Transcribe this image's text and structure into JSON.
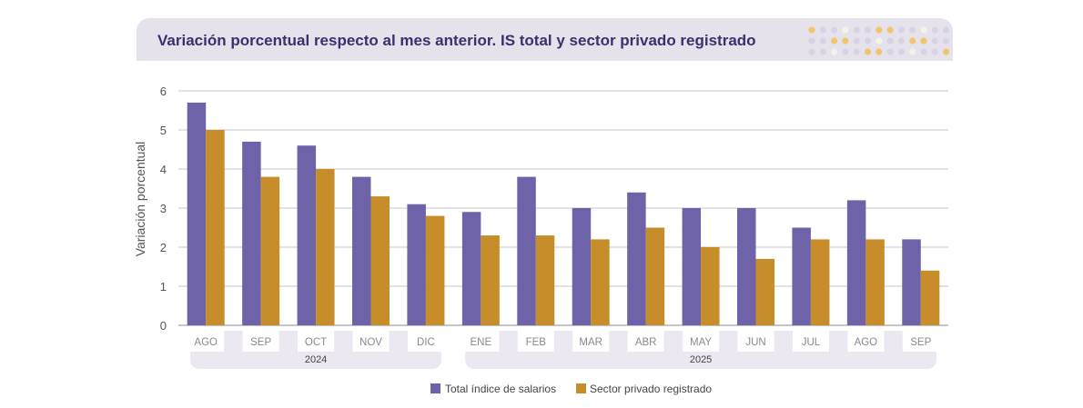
{
  "title": "Variación porcentual respecto al mes anterior. IS total y sector privado registrado",
  "colors": {
    "total": "#6e62a8",
    "private": "#c68d2a",
    "header_bg": "#e6e2ec",
    "title": "#3f2e6e"
  },
  "chart_data": {
    "type": "bar",
    "title": "Variación porcentual respecto al mes anterior. IS total y sector privado registrado",
    "ylabel": "Variación porcentual",
    "ylim": [
      0,
      6
    ],
    "yticks": [
      0,
      1,
      2,
      3,
      4,
      5,
      6
    ],
    "grid": true,
    "legend_position": "bottom",
    "categories": [
      "AGO",
      "SEP",
      "OCT",
      "NOV",
      "DIC",
      "ENE",
      "FEB",
      "MAR",
      "ABR",
      "MAY",
      "JUN",
      "JUL",
      "AGO",
      "SEP"
    ],
    "year_groups": [
      {
        "label": "2024",
        "start": 0,
        "end": 4
      },
      {
        "label": "2025",
        "start": 5,
        "end": 13
      }
    ],
    "series": [
      {
        "name": "Total índice de salarios",
        "values": [
          5.7,
          4.7,
          4.6,
          3.8,
          3.1,
          2.9,
          3.8,
          3.0,
          3.4,
          3.0,
          3.0,
          2.5,
          3.2,
          2.2
        ]
      },
      {
        "name": "Sector privado registrado",
        "values": [
          5.0,
          3.8,
          4.0,
          3.3,
          2.8,
          2.3,
          2.3,
          2.2,
          2.5,
          2.0,
          1.7,
          2.2,
          2.2,
          1.4
        ]
      }
    ]
  }
}
